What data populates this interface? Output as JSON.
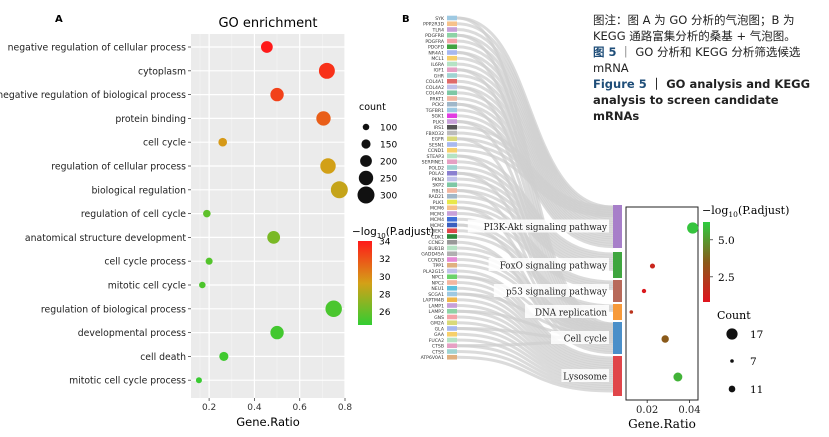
{
  "panel_labels": {
    "a": "A",
    "b": "B"
  },
  "caption": {
    "line1": "图注：图 A 为 GO 分析的气泡图；B 为",
    "line2": "KEGG 通路富集分析的桑基 + 气泡图。",
    "fig_zh_num": "图 5",
    "fig_zh_text": "GO 分析和 KEGG 分析筛选候选",
    "fig_zh_text2": "mRNA",
    "fig_en_num": "Figure 5",
    "fig_en_text": "GO analysis and KEGG",
    "fig_en_text2": "analysis to screen candidate mRNAs"
  },
  "chart_data": [
    {
      "type": "scatter",
      "title": "GO enrichment",
      "xlabel": "Gene.Ratio",
      "xlim": [
        0.12,
        0.8
      ],
      "xticks": [
        0.2,
        0.4,
        0.6,
        0.8
      ],
      "xtick_labels": [
        "0.2",
        "0.4",
        "0.6",
        "0.8"
      ],
      "grid": true,
      "categories": [
        "negative regulation of cellular process",
        "cytoplasm",
        "negative regulation of biological process",
        "protein binding",
        "cell cycle",
        "regulation of cellular process",
        "biological regulation",
        "regulation of cell cycle",
        "anatomical structure development",
        "cell cycle process",
        "mitotic cell cycle",
        "regulation of biological process",
        "developmental process",
        "cell death",
        "mitotic cell cycle process"
      ],
      "gene_ratio": [
        0.455,
        0.72,
        0.5,
        0.705,
        0.26,
        0.725,
        0.775,
        0.19,
        0.485,
        0.2,
        0.17,
        0.75,
        0.5,
        0.265,
        0.155
      ],
      "count": [
        200,
        280,
        230,
        250,
        140,
        270,
        300,
        120,
        220,
        110,
        100,
        290,
        230,
        150,
        90
      ],
      "neg_log10_padj": [
        34,
        33.2,
        32.6,
        31.6,
        29.5,
        29.2,
        28.8,
        25.8,
        26.6,
        25.5,
        25.3,
        25.2,
        25.0,
        24.9,
        24.7
      ],
      "size_legend": {
        "title": "count",
        "values": [
          100,
          150,
          200,
          250,
          300
        ]
      },
      "color_legend": {
        "title_prefix": "−log",
        "title_sub": "10",
        "title_suffix": "(P.adjust)",
        "ticks": [
          34,
          32,
          30,
          28,
          26
        ],
        "low_color": "#32cd32",
        "high_color": "#ff1a1a"
      }
    },
    {
      "type": "scatter",
      "subtype": "sankey-bubble",
      "xlabel": "Gene.Ratio",
      "xlim": [
        0.01,
        0.044
      ],
      "xticks": [
        0.02,
        0.04
      ],
      "xtick_labels": [
        "0.02",
        "0.04"
      ],
      "genes": [
        "SYK",
        "PPP2R3D",
        "TLR4",
        "PDGFRB",
        "PDGFRA",
        "PDGFD",
        "NR4A1",
        "MCL1",
        "IL6RA",
        "IGF1",
        "GHR",
        "COL4A1",
        "COL4A2",
        "COL4A5",
        "PRKT1",
        "PCK2",
        "TGFBR1",
        "SGK1",
        "PLK3",
        "IRS1",
        "FBXO32",
        "EGFR",
        "SESN1",
        "CCND1",
        "STEAP3",
        "SERPINE1",
        "POLD2",
        "POLA2",
        "PKN3",
        "SKP2",
        "RBL1",
        "RAD21",
        "PLK1",
        "MCM6",
        "MCM3",
        "MCM4",
        "MCM2",
        "CREK1",
        "CDK1",
        "CCNE2",
        "BUB1B",
        "GADD45A",
        "CCND3",
        "TPP1",
        "PLA2G15",
        "NPC1",
        "NPC2",
        "NEU1",
        "SCGA1",
        "LAPTM4B",
        "LAMP1",
        "LAMP2",
        "GNS",
        "GM2A",
        "GLA",
        "GAA",
        "FUCA2",
        "CTSB",
        "CTSS",
        "ATP6V0A1"
      ],
      "pathways": [
        "PI3K-Akt signaling pathway",
        "FoxO signaling pathway",
        "p53 signaling pathway",
        "DNA replication",
        "Cell cycle",
        "Lysosome"
      ],
      "pathway_colors": [
        "#a77fc9",
        "#3fa63f",
        "#b86a5a",
        "#f79a3a",
        "#4a8fc9",
        "#e0464a"
      ],
      "gene_ratio": [
        0.0415,
        0.0225,
        0.0185,
        0.0125,
        0.0285,
        0.0345
      ],
      "count": [
        17,
        9,
        8,
        7,
        12,
        14
      ],
      "neg_log10_padj": [
        6.0,
        1.5,
        1.0,
        2.0,
        3.5,
        5.6
      ],
      "size_legend": {
        "title": "Count",
        "values": [
          17,
          7,
          11
        ]
      },
      "color_legend": {
        "title_prefix": "−log",
        "title_sub": "10",
        "title_suffix": "(P.adjust)",
        "ticks": [
          5.0,
          2.5
        ],
        "low_color": "#e0141e",
        "high_color": "#2ecc40"
      }
    }
  ]
}
